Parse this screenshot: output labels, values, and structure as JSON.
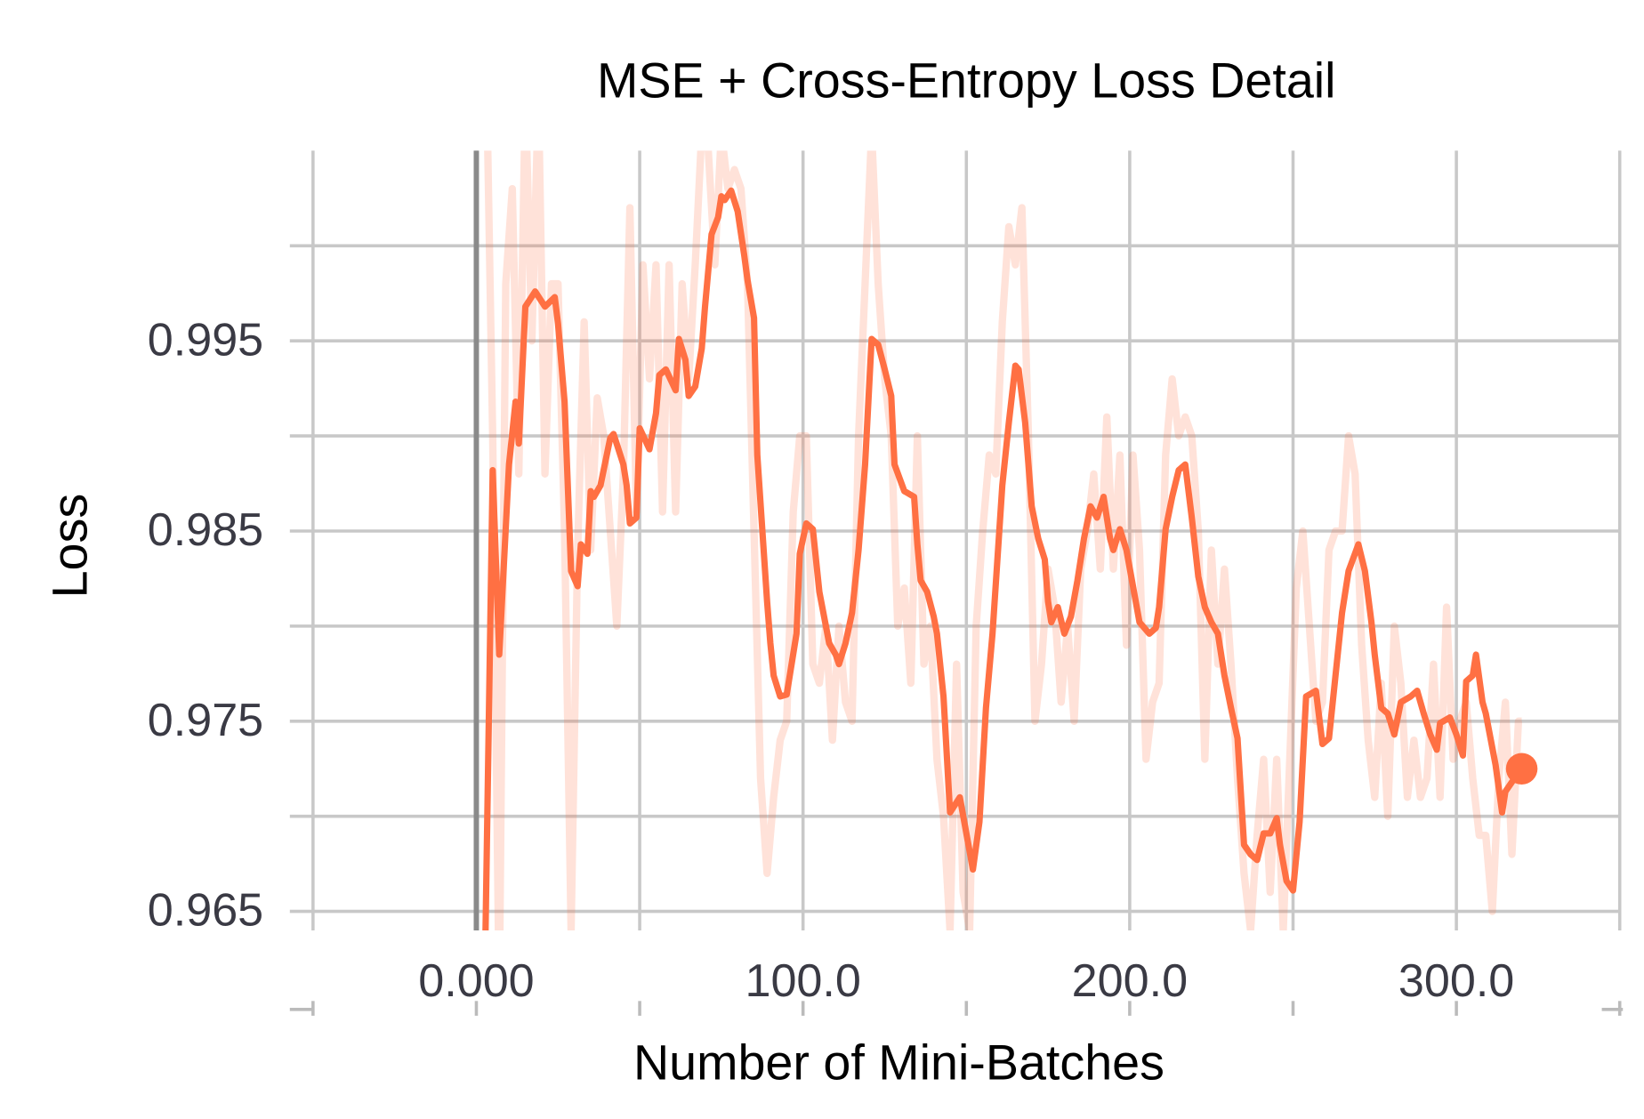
{
  "chart_data": {
    "type": "line",
    "title": "MSE + Cross-Entropy Loss Detail",
    "xlabel": "Number of Mini-Batches",
    "ylabel": "Loss",
    "xlim": [
      -50,
      350
    ],
    "ylim": [
      0.964,
      1.005
    ],
    "xticks": [
      {
        "value": 0,
        "label": "0.000"
      },
      {
        "value": 100,
        "label": "100.0"
      },
      {
        "value": 200,
        "label": "200.0"
      },
      {
        "value": 300,
        "label": "300.0"
      }
    ],
    "x_minor_ticks": [
      -50,
      50,
      150,
      250,
      350
    ],
    "yticks": [
      0.965,
      0.975,
      0.985,
      0.995
    ],
    "y_minor_ticks": [
      0.97,
      0.98,
      0.99,
      1.0
    ],
    "grid": true,
    "zero_line": true,
    "end_marker": true,
    "series": [
      {
        "color": "#ff7043",
        "opacity": 0.2,
        "x": [
          3,
          5,
          7,
          9,
          11,
          13,
          15,
          17,
          19,
          21,
          23,
          25,
          27,
          29,
          31,
          33,
          35,
          37,
          39,
          41,
          43,
          45,
          47,
          49,
          51,
          53,
          55,
          57,
          59,
          61,
          63,
          65,
          67,
          69,
          71,
          73,
          75,
          77,
          79,
          81,
          83,
          85,
          87,
          89,
          91,
          93,
          95,
          97,
          99,
          101,
          103,
          105,
          107,
          109,
          111,
          113,
          115,
          117,
          119,
          121,
          123,
          125,
          127,
          129,
          131,
          133,
          135,
          137,
          139,
          141,
          143,
          145,
          147,
          149,
          151,
          153,
          155,
          157,
          159,
          161,
          163,
          165,
          167,
          169,
          171,
          173,
          175,
          177,
          179,
          181,
          183,
          185,
          187,
          189,
          191,
          193,
          195,
          197,
          199,
          201,
          203,
          205,
          207,
          209,
          211,
          213,
          215,
          217,
          219,
          221,
          223,
          225,
          227,
          229,
          231,
          233,
          235,
          237,
          239,
          241,
          243,
          245,
          247,
          249,
          251,
          253,
          255,
          257,
          259,
          261,
          263,
          265,
          267,
          269,
          271,
          273,
          275,
          277,
          279,
          281,
          283,
          285,
          287,
          289,
          291,
          293,
          295,
          297,
          299,
          301,
          303,
          305,
          307,
          309,
          311,
          313,
          315,
          317,
          319,
          320
        ],
        "values": [
          1.01,
          0.99,
          0.96,
          0.998,
          1.003,
          0.988,
          1.008,
          0.995,
          1.008,
          0.988,
          0.998,
          0.998,
          0.985,
          0.964,
          0.984,
          0.996,
          0.984,
          0.992,
          0.99,
          0.985,
          0.98,
          0.988,
          1.002,
          0.986,
          0.999,
          0.993,
          0.999,
          0.986,
          0.999,
          0.986,
          0.998,
          0.993,
          0.999,
          1.006,
          1.005,
          0.999,
          1.006,
          1.003,
          1.004,
          1.003,
          0.998,
          0.985,
          0.972,
          0.967,
          0.971,
          0.974,
          0.975,
          0.986,
          0.99,
          0.99,
          0.978,
          0.977,
          0.98,
          0.974,
          0.98,
          0.976,
          0.975,
          0.99,
          0.998,
          1.006,
          0.998,
          0.993,
          0.99,
          0.98,
          0.982,
          0.977,
          0.99,
          0.978,
          0.98,
          0.973,
          0.97,
          0.964,
          0.978,
          0.966,
          0.964,
          0.98,
          0.985,
          0.989,
          0.988,
          0.996,
          1.001,
          0.999,
          1.002,
          0.99,
          0.975,
          0.978,
          0.983,
          0.981,
          0.976,
          0.98,
          0.975,
          0.983,
          0.985,
          0.988,
          0.983,
          0.991,
          0.983,
          0.989,
          0.979,
          0.989,
          0.984,
          0.973,
          0.976,
          0.977,
          0.989,
          0.993,
          0.99,
          0.991,
          0.99,
          0.985,
          0.973,
          0.984,
          0.978,
          0.983,
          0.978,
          0.972,
          0.967,
          0.964,
          0.969,
          0.973,
          0.966,
          0.973,
          0.964,
          0.973,
          0.982,
          0.985,
          0.98,
          0.975,
          0.976,
          0.984,
          0.985,
          0.985,
          0.99,
          0.988,
          0.979,
          0.974,
          0.971,
          0.977,
          0.97,
          0.98,
          0.977,
          0.971,
          0.974,
          0.971,
          0.972,
          0.978,
          0.971,
          0.981,
          0.973,
          0.975,
          0.976,
          0.972,
          0.969,
          0.969,
          0.965,
          0.972,
          0.976,
          0.968,
          0.975,
          0.975
        ]
      },
      {
        "color": "#ff7043",
        "opacity": 1,
        "x": [
          2,
          5,
          7,
          10,
          12,
          13,
          15,
          18,
          21,
          24,
          25,
          27,
          29,
          31,
          32,
          34,
          35,
          36,
          38,
          41,
          42,
          45,
          46,
          47,
          49,
          50,
          53,
          55,
          56,
          58,
          61,
          62,
          64,
          65,
          67,
          69,
          70,
          72,
          74,
          75,
          76,
          78,
          80,
          82,
          83,
          85,
          86,
          89,
          90,
          91,
          93,
          95,
          98,
          99,
          101,
          103,
          105,
          108,
          110,
          111,
          113,
          115,
          117,
          119,
          121,
          123,
          125,
          127,
          128,
          131,
          134,
          135,
          136,
          138,
          140,
          141,
          143,
          145,
          148,
          150,
          152,
          154,
          156,
          158,
          161,
          163,
          165,
          166,
          168,
          170,
          172,
          174,
          175,
          176,
          178,
          180,
          182,
          184,
          186,
          188,
          190,
          192,
          194,
          195,
          197,
          199,
          201,
          203,
          206,
          208,
          209,
          211,
          213,
          215,
          217,
          219,
          221,
          223,
          225,
          227,
          229,
          231,
          233,
          235,
          237,
          239,
          241,
          243,
          245,
          246,
          248,
          250,
          252,
          254,
          257,
          259,
          261,
          263,
          265,
          267,
          270,
          272,
          274,
          275,
          277,
          279,
          281,
          283,
          286,
          288,
          290,
          292,
          294,
          295,
          298,
          300,
          302,
          303,
          305,
          306,
          308,
          309,
          312,
          314,
          315,
          317,
          320
        ],
        "values": [
          0.955,
          0.9882,
          0.9785,
          0.9885,
          0.9918,
          0.9896,
          0.9968,
          0.9976,
          0.9968,
          0.9973,
          0.9959,
          0.9918,
          0.9829,
          0.9821,
          0.9843,
          0.9838,
          0.9871,
          0.9868,
          0.9874,
          0.9899,
          0.9901,
          0.9885,
          0.9874,
          0.9854,
          0.9857,
          0.9904,
          0.9893,
          0.9912,
          0.9932,
          0.9935,
          0.9924,
          0.9951,
          0.994,
          0.9921,
          0.9926,
          0.9946,
          0.9968,
          1.0006,
          1.0015,
          1.0026,
          1.0024,
          1.0029,
          1.0018,
          0.9995,
          0.9982,
          0.9962,
          0.989,
          0.9813,
          0.9791,
          0.9774,
          0.9763,
          0.9764,
          0.9796,
          0.9838,
          0.9854,
          0.9851,
          0.9818,
          0.9791,
          0.9785,
          0.978,
          0.9791,
          0.9807,
          0.984,
          0.9885,
          0.9951,
          0.9948,
          0.9935,
          0.9921,
          0.9885,
          0.9871,
          0.9868,
          0.9843,
          0.9824,
          0.9818,
          0.9805,
          0.9796,
          0.9763,
          0.9702,
          0.971,
          0.9691,
          0.9672,
          0.9697,
          0.9757,
          0.9796,
          0.9874,
          0.9907,
          0.9937,
          0.9935,
          0.9907,
          0.9863,
          0.9846,
          0.9835,
          0.9813,
          0.9802,
          0.981,
          0.9796,
          0.9805,
          0.9824,
          0.9846,
          0.9863,
          0.9857,
          0.9868,
          0.9846,
          0.984,
          0.9851,
          0.984,
          0.9821,
          0.9802,
          0.9796,
          0.9799,
          0.981,
          0.9851,
          0.9868,
          0.9882,
          0.9885,
          0.9857,
          0.9826,
          0.981,
          0.9802,
          0.9796,
          0.9774,
          0.9757,
          0.9741,
          0.9685,
          0.968,
          0.9677,
          0.9691,
          0.9691,
          0.9699,
          0.9685,
          0.9666,
          0.9661,
          0.9697,
          0.9763,
          0.9766,
          0.9738,
          0.9741,
          0.9774,
          0.9807,
          0.9829,
          0.9843,
          0.9829,
          0.9802,
          0.9785,
          0.9757,
          0.9754,
          0.9743,
          0.976,
          0.9763,
          0.9766,
          0.9754,
          0.9743,
          0.9735,
          0.9749,
          0.9752,
          0.9743,
          0.9732,
          0.9771,
          0.9774,
          0.9785,
          0.976,
          0.9754,
          0.9727,
          0.9702,
          0.9713,
          0.9718,
          0.9725
        ]
      }
    ]
  }
}
